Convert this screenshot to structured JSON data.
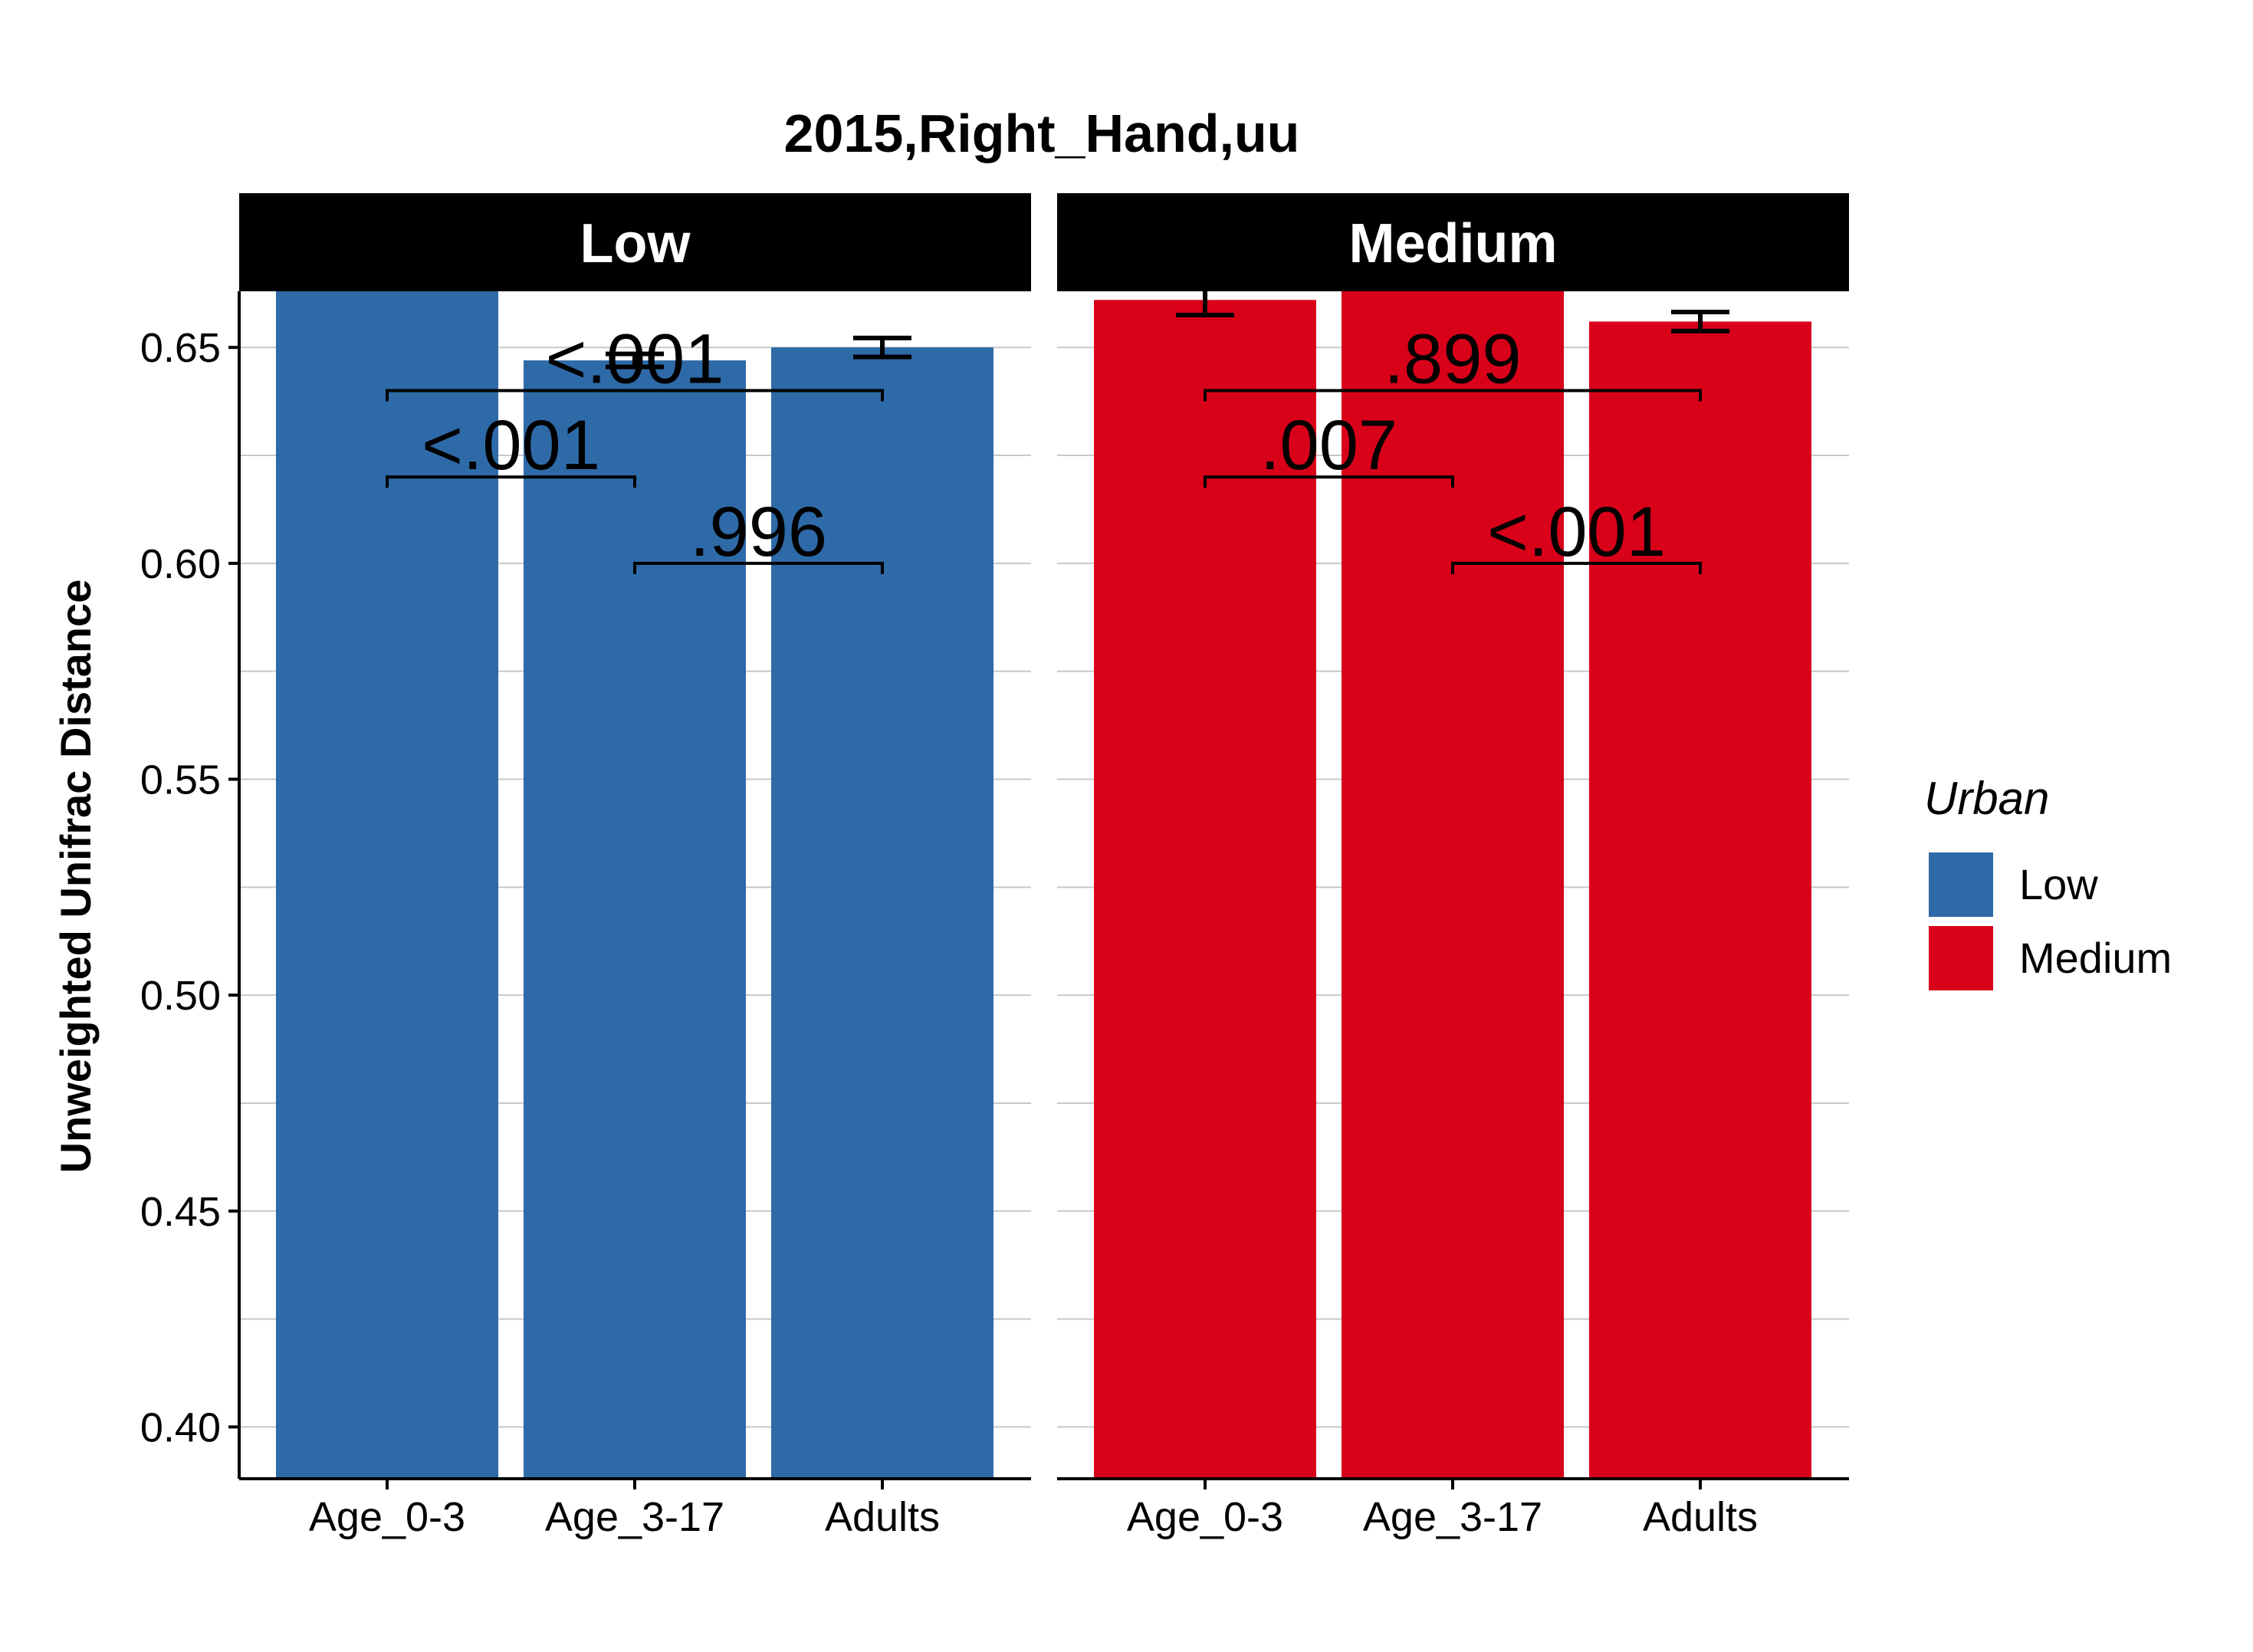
{
  "chart_data": {
    "type": "bar",
    "title": "2015,Right_Hand,uu",
    "xlabel": "",
    "ylabel": "Unweighted Unifrac Distance",
    "ylim": [
      0.388,
      0.663
    ],
    "yticks": [
      "0.40",
      "0.45",
      "0.50",
      "0.55",
      "0.60",
      "0.65"
    ],
    "ytick_values": [
      0.4,
      0.45,
      0.5,
      0.55,
      0.6,
      0.65
    ],
    "grid": true,
    "legend": {
      "title": "Urban",
      "position": "right",
      "entries": [
        {
          "label": "Low",
          "color": "#2e6aa8"
        },
        {
          "label": "Medium",
          "color": "#d9001a"
        }
      ]
    },
    "categories": [
      "Age_0-3",
      "Age_3-17",
      "Adults"
    ],
    "facets": [
      {
        "label": "Low",
        "color": "#2e6aa8",
        "values": [
          0.668,
          0.647,
          0.65
        ],
        "errors": [
          null,
          0.0015,
          0.0022
        ],
        "comparisons": [
          {
            "from": 0,
            "to": 2,
            "y": 0.64,
            "label": "<.001"
          },
          {
            "from": 0,
            "to": 1,
            "y": 0.62,
            "label": "<.001"
          },
          {
            "from": 1,
            "to": 2,
            "y": 0.6,
            "label": ".996"
          }
        ]
      },
      {
        "label": "Medium",
        "color": "#d9001a",
        "values": [
          0.661,
          0.668,
          0.656
        ],
        "errors": [
          0.0035,
          null,
          0.0022
        ],
        "comparisons": [
          {
            "from": 0,
            "to": 2,
            "y": 0.64,
            "label": ".899"
          },
          {
            "from": 0,
            "to": 1,
            "y": 0.62,
            "label": ".007"
          },
          {
            "from": 1,
            "to": 2,
            "y": 0.6,
            "label": "<.001"
          }
        ]
      }
    ]
  }
}
